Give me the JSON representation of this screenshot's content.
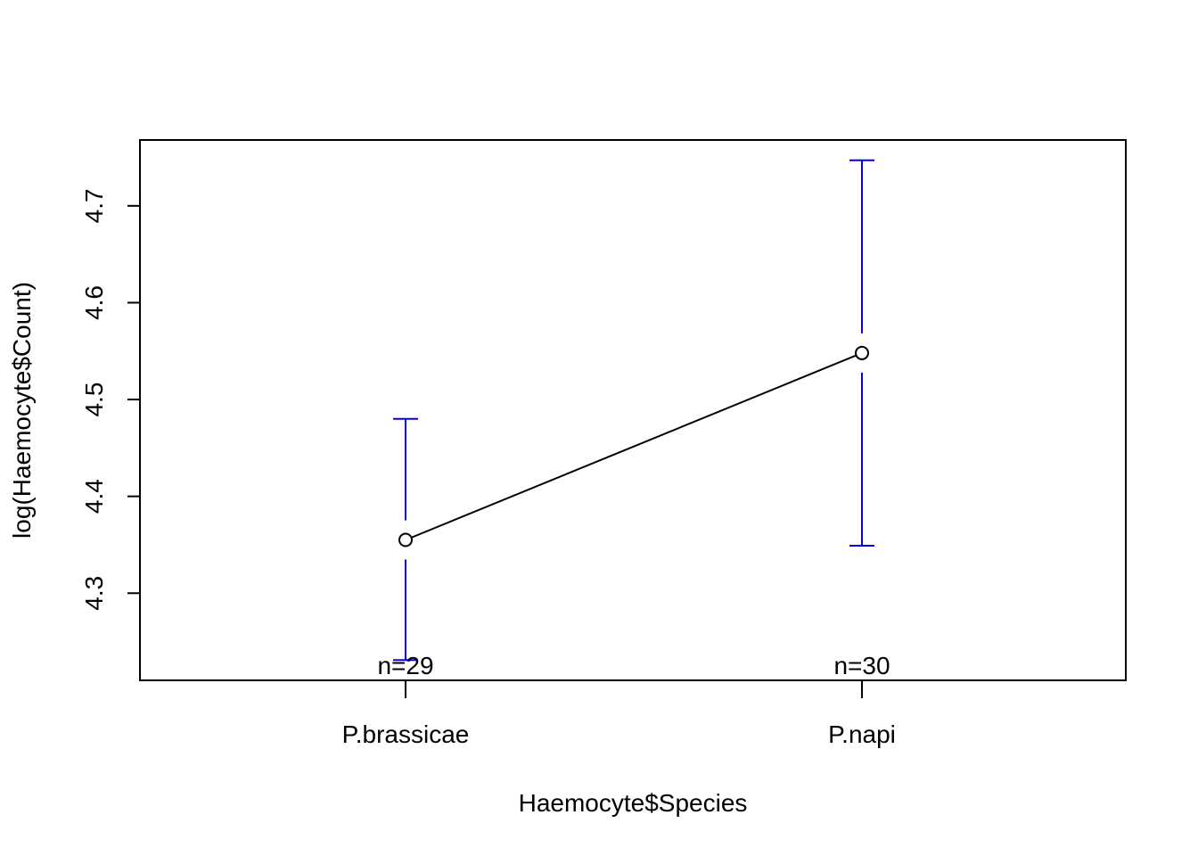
{
  "chart_data": {
    "type": "line",
    "title": "",
    "xlabel": "Haemocyte$Species",
    "ylabel": "log(Haemocyte$Count)",
    "categories": [
      "P.brassicae",
      "P.napi"
    ],
    "series": [
      {
        "values": [
          4.355,
          4.548
        ],
        "error_low": [
          4.231,
          4.349
        ],
        "error_high": [
          4.48,
          4.747
        ],
        "n_labels": [
          "n=29",
          "n=30"
        ]
      }
    ],
    "y_ticks": [
      4.3,
      4.4,
      4.5,
      4.6,
      4.7
    ],
    "y_tick_labels": [
      "4.3",
      "4.4",
      "4.5",
      "4.6",
      "4.7"
    ],
    "ylim": [
      4.21,
      4.768
    ],
    "grid": false,
    "colors": {
      "line": "#000000",
      "errorbar": "#0000ee",
      "axis": "#000000"
    }
  }
}
